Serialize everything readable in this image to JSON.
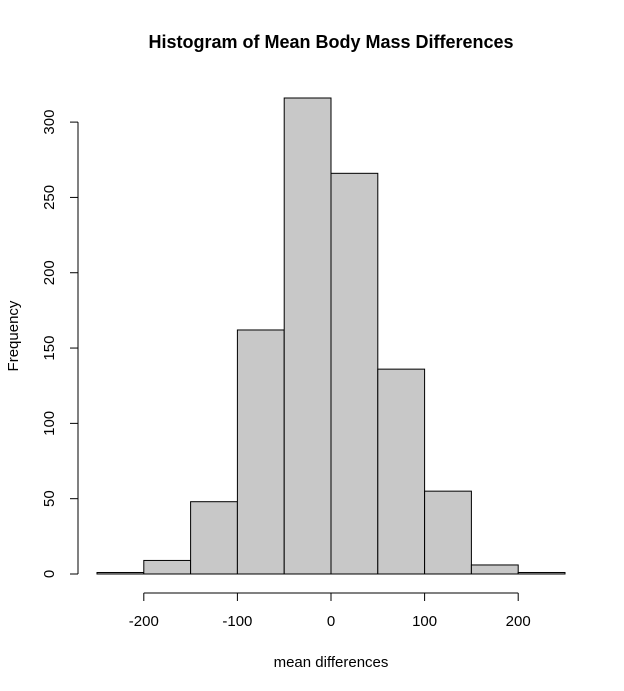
{
  "chart_data": {
    "type": "bar",
    "title": "Histogram of Mean Body Mass Differences",
    "xlabel": "mean differences",
    "ylabel": "Frequency",
    "bins": [
      {
        "start": -250,
        "end": -200,
        "count": 1
      },
      {
        "start": -200,
        "end": -150,
        "count": 9
      },
      {
        "start": -150,
        "end": -100,
        "count": 48
      },
      {
        "start": -100,
        "end": -50,
        "count": 162
      },
      {
        "start": -50,
        "end": 0,
        "count": 316
      },
      {
        "start": 0,
        "end": 50,
        "count": 266
      },
      {
        "start": 50,
        "end": 100,
        "count": 136
      },
      {
        "start": 100,
        "end": 150,
        "count": 55
      },
      {
        "start": 150,
        "end": 200,
        "count": 6
      },
      {
        "start": 200,
        "end": 250,
        "count": 1
      }
    ],
    "x_ticks": [
      -200,
      -100,
      0,
      100,
      200
    ],
    "y_ticks": [
      0,
      50,
      100,
      150,
      200,
      250,
      300
    ],
    "xlim": [
      -250,
      250
    ],
    "ylim": [
      0,
      316
    ],
    "grid": false,
    "bar_color": "#c8c8c8",
    "edge_color": "#000000"
  }
}
